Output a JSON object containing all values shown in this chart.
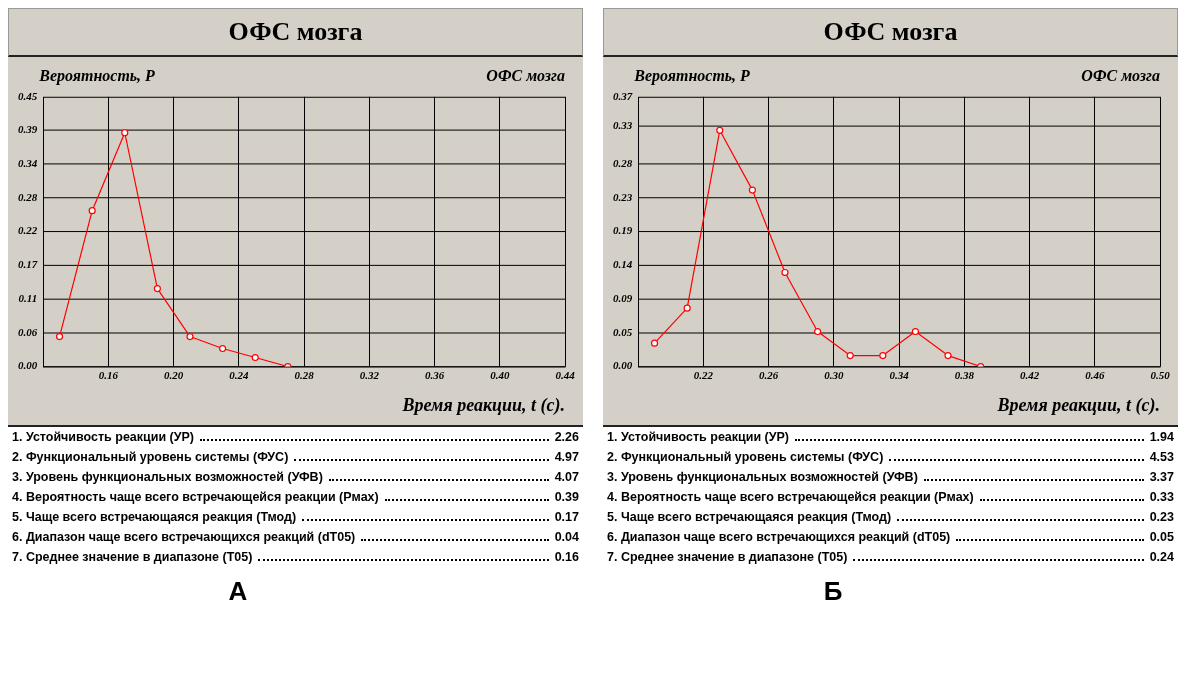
{
  "chart_data": [
    {
      "type": "line",
      "title": "ОФС мозга",
      "subtitle": "ОФС мозга",
      "ylabel": "Вероятность, P",
      "xlabel": "Время реакции, t (c).",
      "x": [
        0.13,
        0.15,
        0.17,
        0.19,
        0.21,
        0.23,
        0.25,
        0.27
      ],
      "series": [
        {
          "color": "#ff0000",
          "values": [
            0.05,
            0.26,
            0.39,
            0.13,
            0.05,
            0.03,
            0.015,
            0
          ]
        }
      ],
      "xlim": [
        0.12,
        0.44
      ],
      "xticks": [
        {
          "value": 0.16,
          "label": "0.16"
        },
        {
          "value": 0.2,
          "label": "0.20"
        },
        {
          "value": 0.24,
          "label": "0.24"
        },
        {
          "value": 0.28,
          "label": "0.28"
        },
        {
          "value": 0.32,
          "label": "0.32"
        },
        {
          "value": 0.36,
          "label": "0.36"
        },
        {
          "value": 0.4,
          "label": "0.40"
        },
        {
          "value": 0.44,
          "label": "0.44"
        }
      ],
      "ylim": [
        0,
        0.45
      ],
      "yticks": [
        {
          "value": 0,
          "label": "0.00"
        },
        {
          "value": 0.05625,
          "label": "0.06"
        },
        {
          "value": 0.1125,
          "label": "0.11"
        },
        {
          "value": 0.16875,
          "label": "0.17"
        },
        {
          "value": 0.225,
          "label": "0.22"
        },
        {
          "value": 0.28125,
          "label": "0.28"
        },
        {
          "value": 0.3375,
          "label": "0.34"
        },
        {
          "value": 0.39375,
          "label": "0.39"
        },
        {
          "value": 0.45,
          "label": "0.45"
        }
      ],
      "grid": true,
      "marker": "circle",
      "line_style": "solid",
      "annotations": [
        "1.  Устойчивость реакции (УР) 2.26",
        "2.  Функциональный уровень системы (ФУС) 4.97",
        "3.  Уровень функциональных возможностей (УФВ) 4.07",
        "4.  Вероятность чаще всего встречающейся реакции (Pмах) 0.39",
        "5.  Чаще всего встречающаяся реакция (Тмод) 0.17",
        "6.  Диапазон чаще всего встречающихся реакций (dT05) 0.04",
        "7.  Среднее значение в диапазоне (T05) 0.16",
        "А"
      ]
    },
    {
      "type": "line",
      "title": "ОФС мозга",
      "subtitle": "ОФС мозга",
      "ylabel": "Вероятность, P",
      "xlabel": "Время реакции, t (c).",
      "x": [
        0.19,
        0.21,
        0.23,
        0.25,
        0.27,
        0.29,
        0.31,
        0.33,
        0.35,
        0.37,
        0.39
      ],
      "series": [
        {
          "color": "#ff0000",
          "values": [
            0.032,
            0.08,
            0.324,
            0.242,
            0.129,
            0.048,
            0.015,
            0.015,
            0.048,
            0.015,
            0
          ]
        }
      ],
      "xlim": [
        0.18,
        0.5
      ],
      "xticks": [
        {
          "value": 0.22,
          "label": "0.22"
        },
        {
          "value": 0.26,
          "label": "0.26"
        },
        {
          "value": 0.3,
          "label": "0.30"
        },
        {
          "value": 0.34,
          "label": "0.34"
        },
        {
          "value": 0.38,
          "label": "0.38"
        },
        {
          "value": 0.42,
          "label": "0.42"
        },
        {
          "value": 0.46,
          "label": "0.46"
        },
        {
          "value": 0.5,
          "label": "0.50"
        }
      ],
      "ylim": [
        0,
        0.37
      ],
      "yticks": [
        {
          "value": 0,
          "label": "0.00"
        },
        {
          "value": 0.04625,
          "label": "0.05"
        },
        {
          "value": 0.0925,
          "label": "0.09"
        },
        {
          "value": 0.13875,
          "label": "0.14"
        },
        {
          "value": 0.185,
          "label": "0.19"
        },
        {
          "value": 0.23125,
          "label": "0.23"
        },
        {
          "value": 0.2775,
          "label": "0.28"
        },
        {
          "value": 0.33,
          "label": "0.33"
        },
        {
          "value": 0.37,
          "label": "0.37"
        }
      ],
      "grid": true,
      "marker": "circle",
      "line_style": "solid",
      "annotations": [
        "1.  Устойчивость реакции (УР) 1.94",
        "2.  Функциональный уровень системы (ФУС) 4.53",
        "3.  Уровень функциональных возможностей (УФВ) 3.37",
        "4.  Вероятность чаще всего встречающейся реакции (Pмах) 0.33",
        "5.  Чаще всего встречающаяся реакция (Тмод) 0.23",
        "6.  Диапазон чаще всего встречающихся реакций (dT05) 0.05",
        "7.  Среднее значение в диапазоне (T05) 0.24",
        "Б"
      ]
    }
  ]
}
